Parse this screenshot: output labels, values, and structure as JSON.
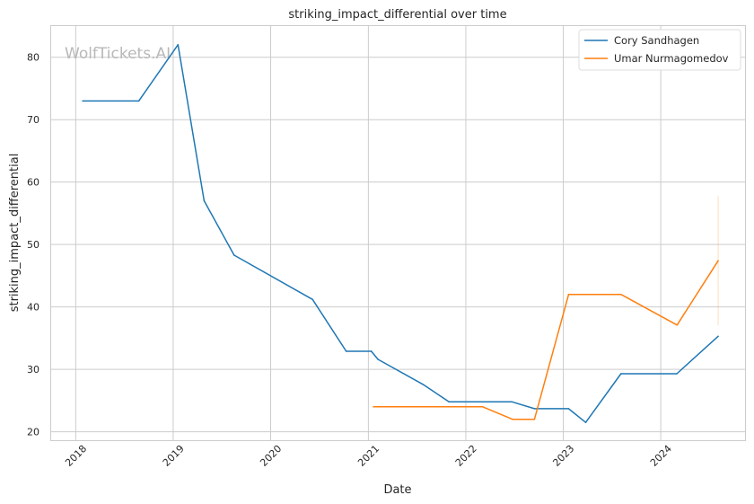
{
  "watermark": "WolfTickets.AI",
  "chart_data": {
    "type": "line",
    "title": "striking_impact_differential over time",
    "xlabel": "Date",
    "ylabel": "striking_impact_differential",
    "xlim": [
      "2017-10-01",
      "2024-11-15"
    ],
    "ylim": [
      18.5,
      85
    ],
    "x_ticks": [
      "2018",
      "2019",
      "2020",
      "2021",
      "2022",
      "2023",
      "2024"
    ],
    "y_ticks": [
      20,
      30,
      40,
      50,
      60,
      70,
      80
    ],
    "grid": true,
    "legend_position": "top-right",
    "series": [
      {
        "name": "Cory Sandhagen",
        "color": "#1f77b4",
        "points": [
          [
            "2018-01-27",
            73.0
          ],
          [
            "2018-08-25",
            73.0
          ],
          [
            "2019-01-19",
            82.0
          ],
          [
            "2019-04-27",
            57.0
          ],
          [
            "2019-08-17",
            48.3
          ],
          [
            "2020-06-06",
            41.2
          ],
          [
            "2020-10-10",
            32.9
          ],
          [
            "2021-01-12",
            32.9
          ],
          [
            "2021-02-06",
            31.6
          ],
          [
            "2021-07-24",
            27.6
          ],
          [
            "2021-10-30",
            24.8
          ],
          [
            "2022-06-22",
            24.8
          ],
          [
            "2022-09-15",
            23.7
          ],
          [
            "2023-01-21",
            23.7
          ],
          [
            "2023-03-26",
            21.5
          ],
          [
            "2023-08-05",
            29.3
          ],
          [
            "2024-03-01",
            29.3
          ],
          [
            "2024-08-03",
            35.3
          ]
        ]
      },
      {
        "name": "Umar Nurmagomedov",
        "color": "#ff7f0e",
        "points": [
          [
            "2021-01-20",
            24.0
          ],
          [
            "2022-03-05",
            24.0
          ],
          [
            "2022-06-25",
            22.0
          ],
          [
            "2022-09-15",
            22.0
          ],
          [
            "2023-01-21",
            42.0
          ],
          [
            "2023-08-05",
            42.0
          ],
          [
            "2024-03-02",
            37.1
          ],
          [
            "2024-08-03",
            47.4
          ]
        ],
        "error_band": {
          "x": "2024-08-03",
          "low": 37.0,
          "high": 57.8
        }
      }
    ]
  }
}
